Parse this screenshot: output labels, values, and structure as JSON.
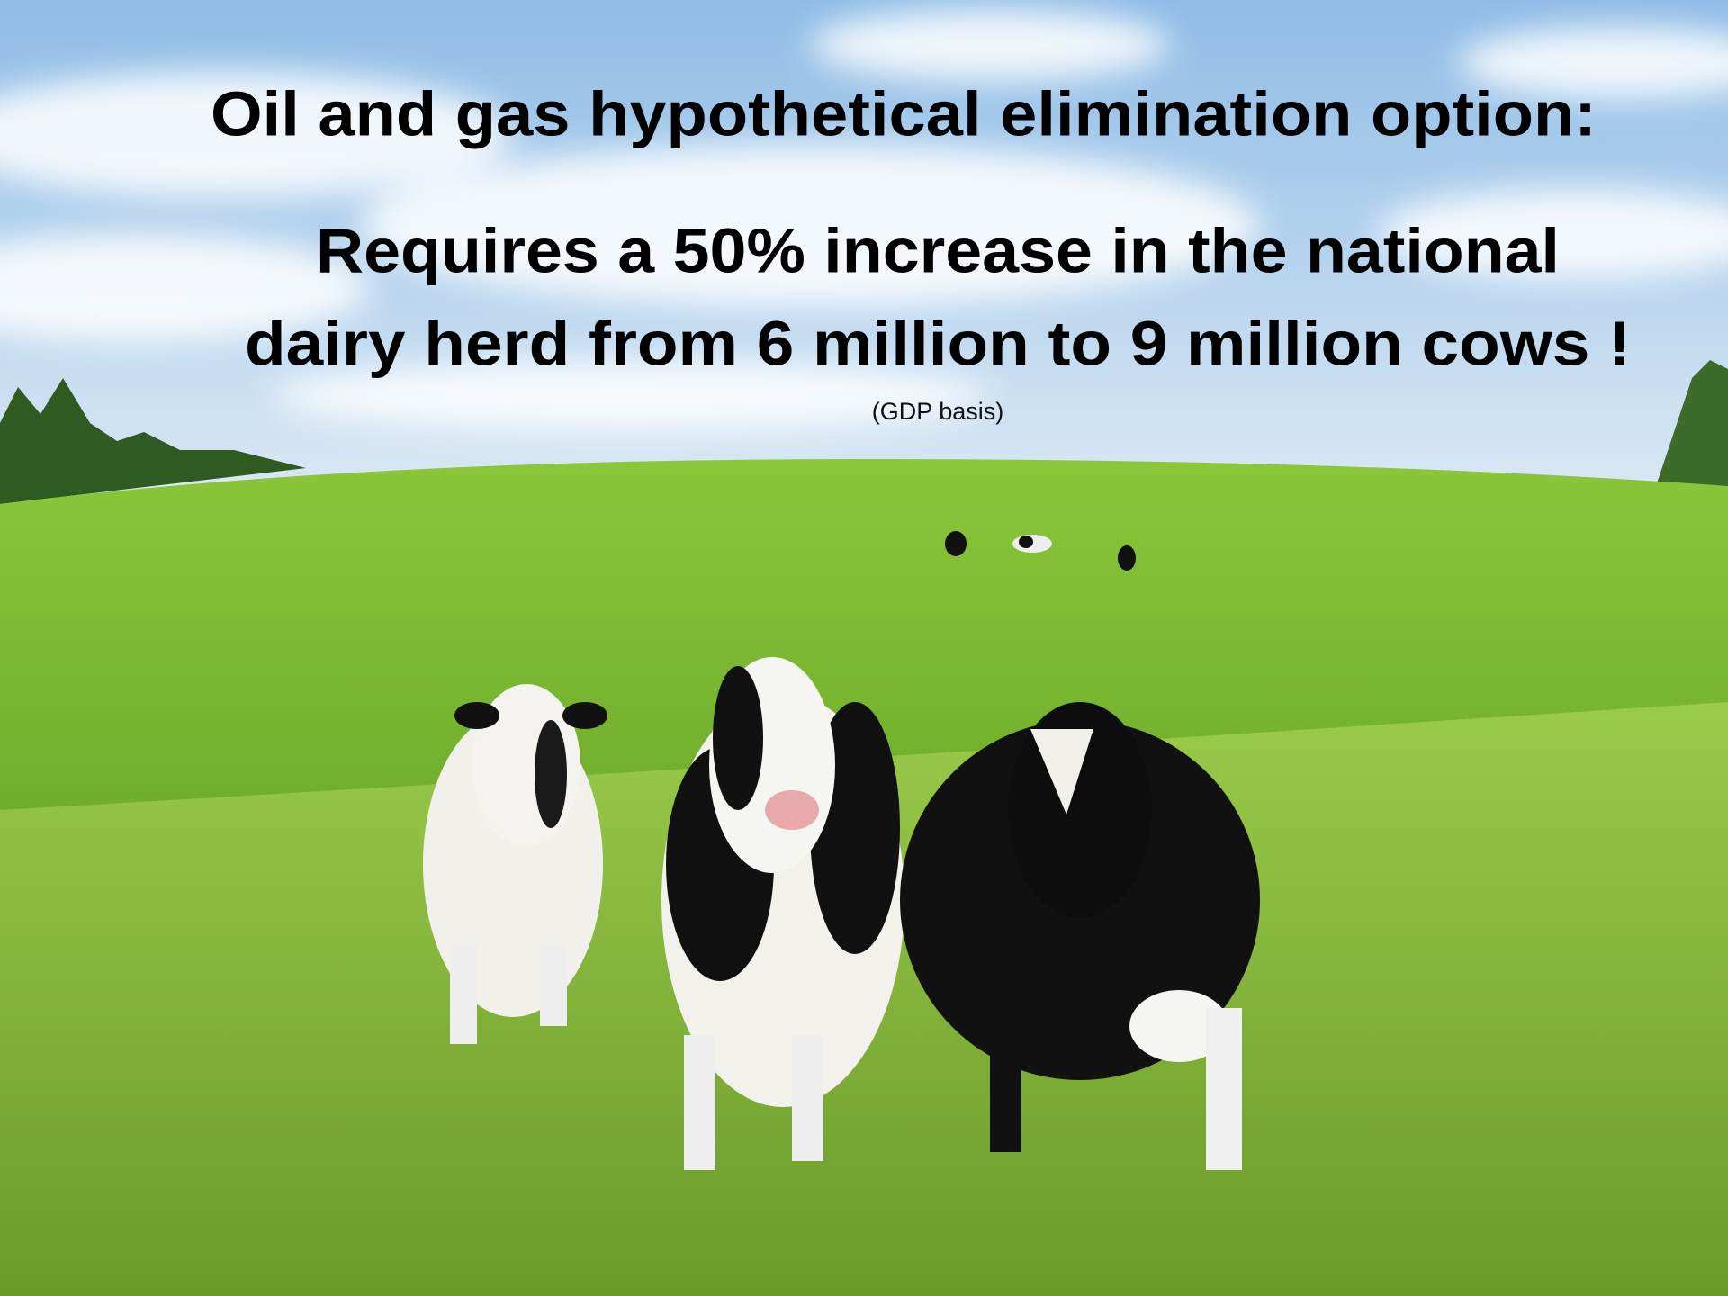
{
  "slide": {
    "title": "Oil and gas hypothetical elimination option:",
    "headline": [
      "Requires a 50% increase in the national",
      "dairy herd from 6 million to 9 million cows !"
    ],
    "note": "(GDP basis)"
  }
}
